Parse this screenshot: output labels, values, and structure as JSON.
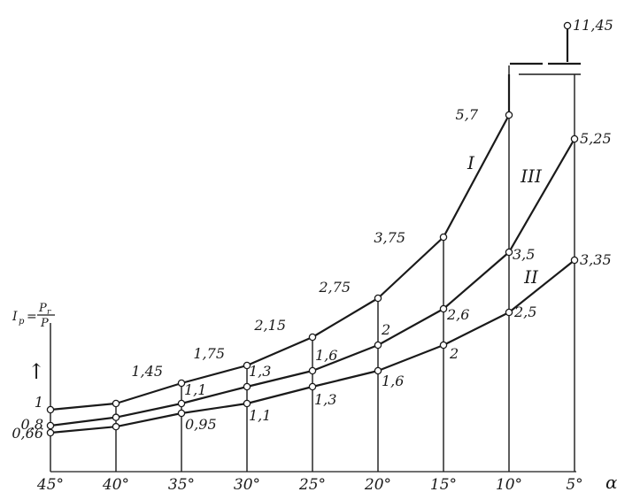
{
  "chart_data": {
    "type": "line",
    "x": [
      45,
      40,
      35,
      30,
      25,
      20,
      15,
      10,
      5
    ],
    "x_tick_labels": [
      "45°",
      "40°",
      "35°",
      "30°",
      "25°",
      "20°",
      "15°",
      "10°",
      "5°"
    ],
    "xlabel": "α",
    "ylabel_left": "I",
    "ylabel_sub": "p",
    "ylabel_eq": "=",
    "ylabel_num": "P",
    "ylabel_num_sub": "r",
    "ylabel_den": "P",
    "ylabel_arrow": "↑",
    "grid": "vertical",
    "series": [
      {
        "name": "I",
        "values": [
          1.0,
          1.1,
          1.45,
          1.75,
          2.15,
          2.75,
          3.75,
          5.7,
          11.45
        ],
        "labels": [
          "1",
          "",
          "1,45",
          "1,75",
          "2,15",
          "2,75",
          "3,75",
          "5,7",
          "11,45"
        ]
      },
      {
        "name": "III",
        "values": [
          0.8,
          0.9,
          1.1,
          1.3,
          1.6,
          2.0,
          2.6,
          3.5,
          5.25
        ],
        "labels": [
          "0,8",
          "",
          "1,1",
          "1,3",
          "1,6",
          "2",
          "2,6",
          "3,5",
          "5,25"
        ]
      },
      {
        "name": "II",
        "values": [
          0.66,
          0.78,
          0.95,
          1.1,
          1.3,
          1.6,
          2.0,
          2.5,
          3.35
        ],
        "labels": [
          "0,66",
          "",
          "0,95",
          "1,1",
          "1,3",
          "1,6",
          "2",
          "2,5",
          "3,35"
        ]
      }
    ]
  }
}
